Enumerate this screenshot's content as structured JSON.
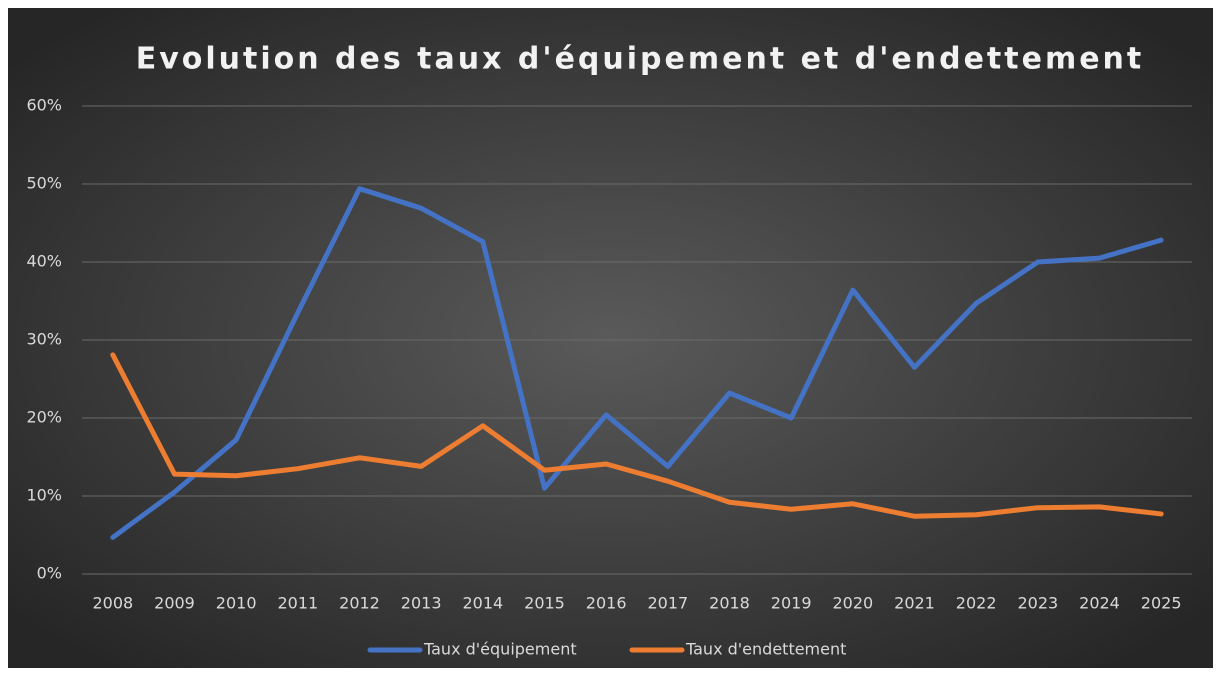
{
  "chart_data": {
    "type": "line",
    "title": "Evolution des taux d'équipement et d'endettement",
    "categories": [
      "2008",
      "2009",
      "2010",
      "2011",
      "2012",
      "2013",
      "2014",
      "2015",
      "2016",
      "2017",
      "2018",
      "2019",
      "2020",
      "2021",
      "2022",
      "2023",
      "2024",
      "2025"
    ],
    "series": [
      {
        "name": "Taux d'équipement",
        "color": "#4472c4",
        "values": [
          4.7,
          10.5,
          17.2,
          33.5,
          49.4,
          46.9,
          42.6,
          11.0,
          20.4,
          13.8,
          23.2,
          20.0,
          36.4,
          26.5,
          34.7,
          40.0,
          40.5,
          42.8
        ]
      },
      {
        "name": "Taux d'endettement",
        "color": "#ed7d31",
        "values": [
          28.1,
          12.8,
          12.6,
          13.5,
          14.9,
          13.8,
          19.0,
          13.3,
          14.1,
          11.9,
          9.2,
          8.3,
          9.0,
          7.4,
          7.6,
          8.5,
          8.6,
          7.7
        ]
      }
    ],
    "ylim": [
      0,
      60
    ],
    "yticks": [
      {
        "value": 0,
        "label": "0%"
      },
      {
        "value": 10,
        "label": "10%"
      },
      {
        "value": 20,
        "label": "20%"
      },
      {
        "value": 30,
        "label": "30%"
      },
      {
        "value": 40,
        "label": "40%"
      },
      {
        "value": 50,
        "label": "50%"
      },
      {
        "value": 60,
        "label": "60%"
      }
    ],
    "grid": true,
    "legend": "bottom"
  }
}
